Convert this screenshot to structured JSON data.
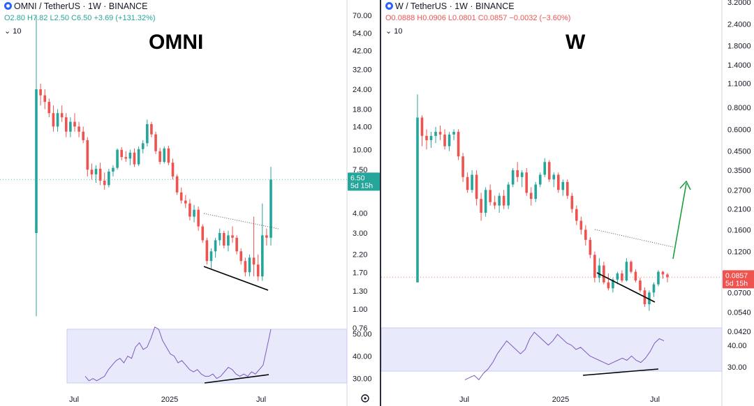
{
  "panels": [
    {
      "header": {
        "symbol": "OMNI / TetherUS · 1W · BINANCE"
      },
      "ohlc": {
        "o": "O2.80",
        "h": "H7.82",
        "l": "L2.50",
        "c": "C6.50",
        "chg": "+3.69 (+131.32%)"
      },
      "indicator": "10",
      "big_label": "OMNI",
      "price_box": {
        "price": "6.50",
        "countdown": "5d 15h",
        "color": "#26a69a"
      },
      "colors": {
        "up": "#26a69a",
        "down": "#ef5350"
      }
    },
    {
      "header": {
        "symbol": "W / TetherUS · 1W · BINANCE"
      },
      "ohlc": {
        "o": "O0.0888",
        "h": "H0.0906",
        "l": "L0.0801",
        "c": "C0.0857",
        "chg": "−0.0032 (−3.60%)"
      },
      "indicator": "10",
      "big_label": "W",
      "price_box": {
        "price": "0.0857",
        "countdown": "5d 15h",
        "color": "#ef5350"
      },
      "colors": {
        "up": "#26a69a",
        "down": "#ef5350"
      }
    }
  ],
  "chart_data": [
    {
      "type": "candlestick",
      "symbol": "OMNI/USDT",
      "timeframe": "1W",
      "yscale": "log",
      "ylim": [
        0.76,
        70
      ],
      "y_ticks": [
        "70.00",
        "54.00",
        "42.00",
        "32.00",
        "24.00",
        "18.00",
        "14.00",
        "10.00",
        "7.50",
        "4.00",
        "3.00",
        "2.20",
        "1.70",
        "1.30",
        "1.00",
        "0.76"
      ],
      "x_ticks": [
        "Jul",
        "2025",
        "Jul"
      ],
      "rsi": {
        "y_ticks": [
          "50.00",
          "40.00",
          "30.00"
        ],
        "ylim": [
          28,
          52
        ]
      }
    },
    {
      "type": "candlestick",
      "symbol": "W/USDT",
      "timeframe": "1W",
      "yscale": "log",
      "ylim": [
        0.042,
        3.2
      ],
      "y_ticks": [
        "3.2000",
        "2.4000",
        "1.8000",
        "1.4000",
        "1.1000",
        "0.8000",
        "0.6000",
        "0.4500",
        "0.3500",
        "0.2700",
        "0.2100",
        "0.1600",
        "0.1200",
        "0.0700",
        "0.0540",
        "0.0420"
      ],
      "x_ticks": [
        "Jul",
        "2025",
        "Jul"
      ],
      "rsi": {
        "y_ticks": [
          "40.00",
          "30.00"
        ],
        "ylim": [
          28,
          48
        ]
      }
    }
  ]
}
